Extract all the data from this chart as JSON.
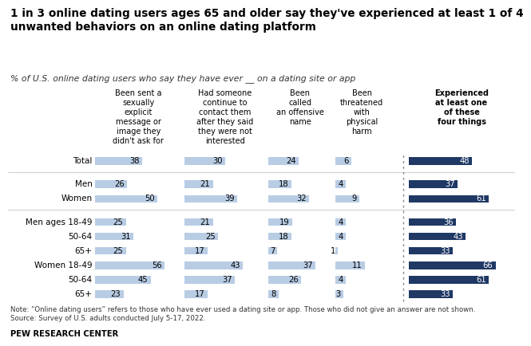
{
  "title": "1 in 3 online dating users ages 65 and older say they've experienced at least 1 of 4\nunwanted behaviors on an online dating platform",
  "subtitle": "% of U.S. online dating users who say they have ever __ on a dating site or app",
  "col_headers": [
    "Been sent a\nsexually\nexplicit\nmessage or\nimage they\ndidn't ask for",
    "Had someone\ncontinue to\ncontact them\nafter they said\nthey were not\ninterested",
    "Been\ncalled\nan offensive\nname",
    "Been\nthreatened\nwith\nphysical\nharm",
    "Experienced\nat least one\nof these\nfour things"
  ],
  "row_labels": [
    "Total",
    null,
    "Men",
    "Women",
    null,
    "Men ages 18-49",
    "50-64",
    "65+",
    "Women 18-49",
    "50-64",
    "65+"
  ],
  "data": {
    "col1": [
      38,
      null,
      26,
      50,
      null,
      25,
      31,
      25,
      56,
      45,
      23
    ],
    "col2": [
      30,
      null,
      21,
      39,
      null,
      21,
      25,
      17,
      43,
      37,
      17
    ],
    "col3": [
      24,
      null,
      18,
      32,
      null,
      19,
      18,
      7,
      37,
      26,
      8
    ],
    "col4": [
      6,
      null,
      4,
      9,
      null,
      4,
      4,
      1,
      11,
      4,
      3
    ],
    "col5": [
      48,
      null,
      37,
      61,
      null,
      36,
      43,
      33,
      66,
      61,
      33
    ]
  },
  "light_blue": "#b8cce4",
  "dark_blue": "#1f3864",
  "note": "Note: “Online dating users” refers to those who have ever used a dating site or app. Those who did not give an answer are not shown.\nSource: Survey of U.S. adults conducted July 5-17, 2022.",
  "source": "PEW RESEARCH CENTER",
  "col_xlims": [
    70,
    60,
    50,
    20,
    80
  ]
}
